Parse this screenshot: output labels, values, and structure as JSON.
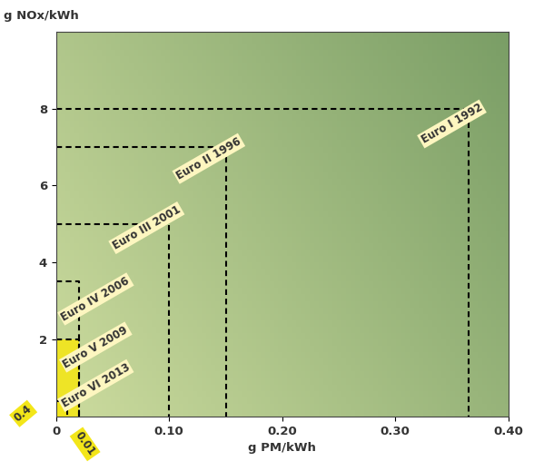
{
  "chart_data": {
    "type": "rectangle",
    "xlabel": "g PM/kWh",
    "ylabel": "g NOx/kWh",
    "labels": [
      "Euro I 1992",
      "Euro II 1996",
      "Euro III 2001",
      "Euro IV 2006",
      "Euro V 2009",
      "Euro VI 2013"
    ],
    "x": [
      0.365,
      0.15,
      0.1,
      0.02,
      0.02,
      0.01
    ],
    "values": [
      8,
      7,
      5,
      3.5,
      2.0,
      0.4
    ],
    "colors": [
      "none",
      "none",
      "none",
      "none",
      "#f3e619",
      "#f3e619"
    ],
    "annotations": [
      0.4,
      0.01
    ],
    "xlim": [
      0,
      0.4
    ],
    "ylim": [
      0,
      10
    ],
    "xticks": [
      0,
      {
        "value": 0.1,
        "label": "0.10"
      },
      {
        "value": 0.2,
        "label": "0.20"
      },
      {
        "value": 0.3,
        "label": "0.30"
      },
      {
        "value": 0.4,
        "label": "0.40"
      }
    ],
    "yticks": [
      2,
      4,
      6,
      8
    ],
    "line_style": "dashed",
    "grid": false
  }
}
